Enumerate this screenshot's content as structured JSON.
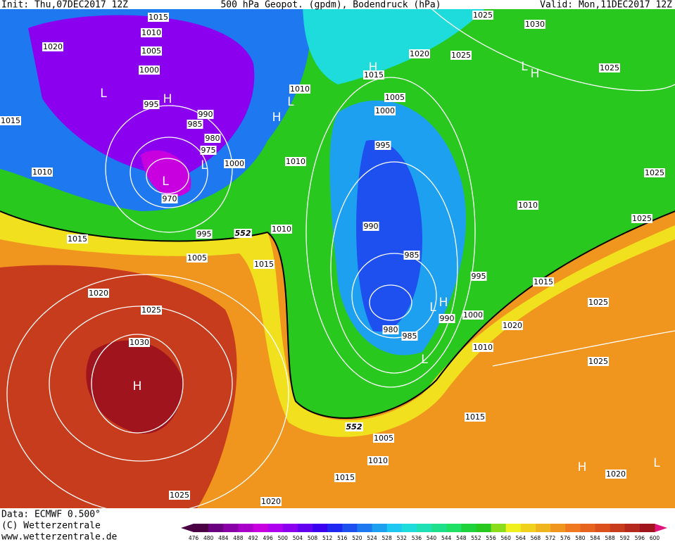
{
  "header": {
    "init": "Init: Thu,07DEC2017 12Z",
    "title": "500 hPa Geopot. (gpdm), Bodendruck (hPa)",
    "valid": "Valid: Mon,11DEC2017 12Z"
  },
  "footer": {
    "data": "Data: ECMWF  0.500°",
    "copyright": "(C) Wetterzentrale",
    "url": "www.wetterzentrale.de"
  },
  "isobar_labels": [
    "1015",
    "1010",
    "1020",
    "1005",
    "1000",
    "995",
    "990",
    "985",
    "980",
    "975",
    "1000",
    "970",
    "1010",
    "1015",
    "1015",
    "995",
    "1010",
    "1005",
    "1015",
    "1020",
    "1025",
    "1030",
    "1025",
    "1020",
    "1015",
    "1010",
    "1005",
    "1015",
    "1010",
    "990",
    "1000",
    "1020",
    "1025",
    "1025",
    "1015",
    "995",
    "985",
    "990",
    "1010",
    "1025",
    "1025",
    "995",
    "1000",
    "1005",
    "1015",
    "1010",
    "1010",
    "1020",
    "1025",
    "1030",
    "1025",
    "1025",
    "980",
    "985",
    "1020"
  ],
  "contour_552_labels": [
    "552",
    "552"
  ],
  "pressure_centers": [
    "L",
    "H",
    "L",
    "L",
    "H",
    "L",
    "H",
    "L",
    "H",
    "L",
    "H",
    "L",
    "H",
    "H",
    "L"
  ],
  "colorbar": {
    "labels": [
      476,
      480,
      484,
      488,
      492,
      496,
      500,
      504,
      508,
      512,
      516,
      520,
      524,
      528,
      532,
      536,
      540,
      544,
      548,
      552,
      556,
      560,
      564,
      568,
      572,
      576,
      580,
      584,
      588,
      592,
      596,
      600
    ],
    "colors": [
      "#4b0046",
      "#6a0080",
      "#8a00a8",
      "#a800c8",
      "#c800e0",
      "#b000f0",
      "#8c00f0",
      "#6400f0",
      "#3c00f0",
      "#1e28f0",
      "#1e50f0",
      "#1e78f0",
      "#1ea0f0",
      "#1ec8f0",
      "#1edcdc",
      "#1ee0b4",
      "#1ee08c",
      "#1ee064",
      "#1ed23c",
      "#28c81e",
      "#8cdc1e",
      "#f0f01e",
      "#f0d21e",
      "#f0b41e",
      "#f0961e",
      "#f0781e",
      "#e6641e",
      "#dc501e",
      "#c83c1e",
      "#b4281e",
      "#a0141e"
    ]
  }
}
